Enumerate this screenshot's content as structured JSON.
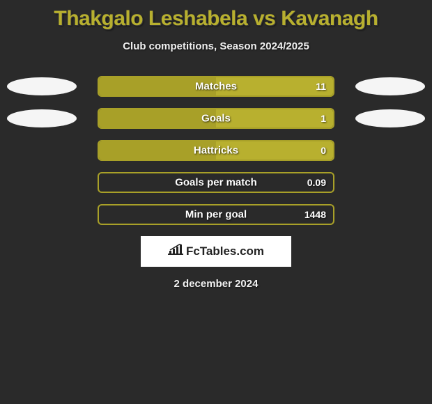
{
  "title": "Thakgalo Leshabela vs Kavanagh",
  "subtitle": "Club competitions, Season 2024/2025",
  "date": "2 december 2024",
  "logo_text": "FcTables.com",
  "colors": {
    "background": "#2a2a2a",
    "accent": "#b8b02f",
    "text": "#f0f0f0",
    "ellipse_left": "#f5f5f5",
    "ellipse_right": "#f5f5f5",
    "bar_border": "#a8a028",
    "bar_fill_left": "#a8a028",
    "bar_fill_right": "#b8b02f"
  },
  "stats": [
    {
      "label": "Matches",
      "value": "11",
      "left_color": "#a8a028",
      "right_color": "#b8b02f",
      "border_color": "#a8a028",
      "left_pct": 50,
      "right_pct": 50,
      "show_ellipses": true,
      "ellipse_left_color": "#f5f5f5",
      "ellipse_right_color": "#f5f5f5"
    },
    {
      "label": "Goals",
      "value": "1",
      "left_color": "#a8a028",
      "right_color": "#b8b02f",
      "border_color": "#a8a028",
      "left_pct": 50,
      "right_pct": 50,
      "show_ellipses": true,
      "ellipse_left_color": "#f5f5f5",
      "ellipse_right_color": "#f5f5f5"
    },
    {
      "label": "Hattricks",
      "value": "0",
      "left_color": "#a8a028",
      "right_color": "#b8b02f",
      "border_color": "#a8a028",
      "left_pct": 50,
      "right_pct": 50,
      "show_ellipses": false
    },
    {
      "label": "Goals per match",
      "value": "0.09",
      "left_color": "transparent",
      "right_color": "transparent",
      "border_color": "#a8a028",
      "left_pct": 0,
      "right_pct": 0,
      "show_ellipses": false
    },
    {
      "label": "Min per goal",
      "value": "1448",
      "left_color": "transparent",
      "right_color": "transparent",
      "border_color": "#a8a028",
      "left_pct": 0,
      "right_pct": 0,
      "show_ellipses": false
    }
  ]
}
